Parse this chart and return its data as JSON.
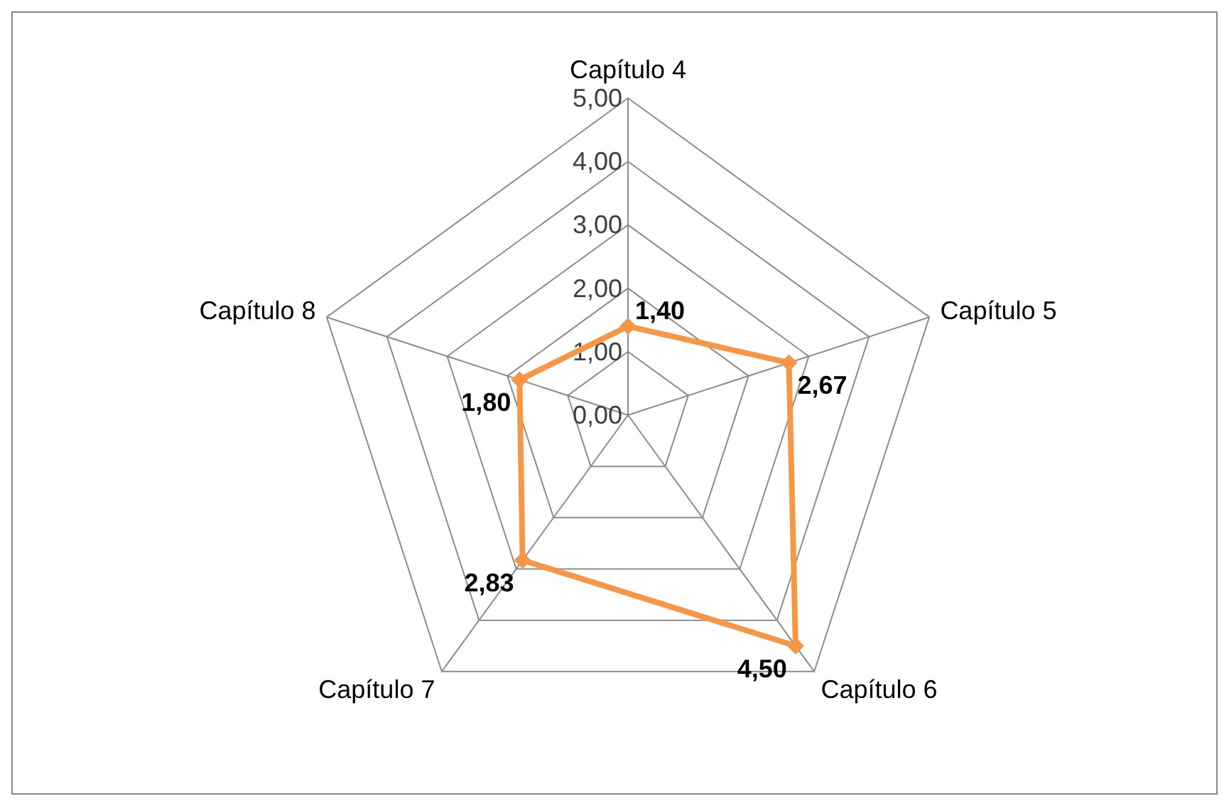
{
  "chart_data": {
    "type": "radar",
    "categories": [
      "Capítulo 4",
      "Capítulo 5",
      "Capítulo 6",
      "Capítulo 7",
      "Capítulo 8"
    ],
    "series": [
      {
        "color": "#f79646",
        "values": [
          1.4,
          2.67,
          4.5,
          2.83,
          1.8
        ],
        "value_labels": [
          "1,40",
          "2,67",
          "4,50",
          "2,83",
          "1,80"
        ]
      }
    ],
    "ylim": [
      0,
      5
    ],
    "yticks": [
      {
        "value": 0,
        "label": "0,00"
      },
      {
        "value": 1,
        "label": "1,00"
      },
      {
        "value": 2,
        "label": "2,00"
      },
      {
        "value": 3,
        "label": "3,00"
      },
      {
        "value": 4,
        "label": "4,00"
      },
      {
        "value": 5,
        "label": "5,00"
      }
    ],
    "grid": true,
    "marker": "diamond",
    "line_style": "solid"
  }
}
